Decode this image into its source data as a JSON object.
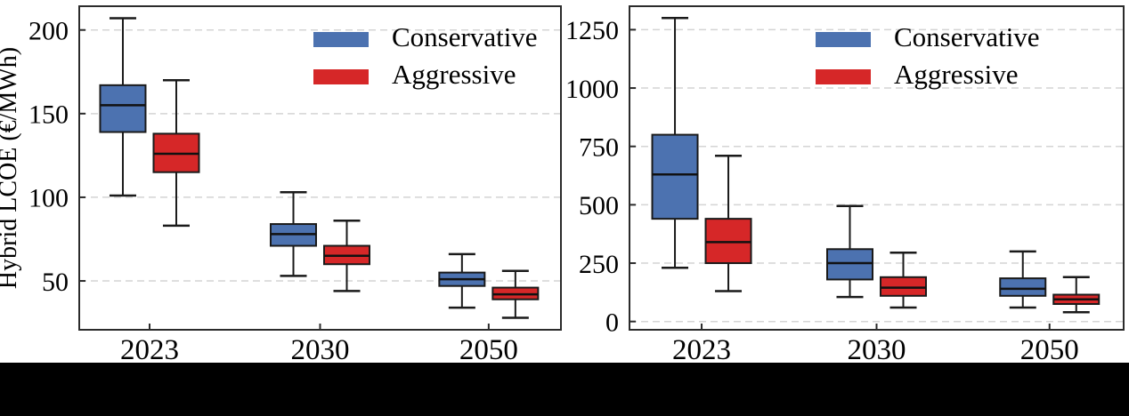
{
  "figure": {
    "description": "Two side-by-side box-and-whisker charts comparing Conservative vs Aggressive scenarios of Hybrid LCOE for years 2023, 2030, 2050",
    "bottom_bar_color": "#000000",
    "background_color": "#ffffff",
    "axis_color": "#2b2b2b",
    "grid_color": "#d4d4d4"
  },
  "chart_data": [
    {
      "type": "box",
      "title": "",
      "xlabel": "",
      "ylabel": "Hybrid LCOE (€/MWh)",
      "categories": [
        "2023",
        "2030",
        "2050"
      ],
      "yticks": [
        50,
        100,
        150,
        200
      ],
      "ylim": [
        20.8,
        214.2
      ],
      "grid": "dashed-horizontal",
      "legend_position": "upper right",
      "legend_entries": [
        "Conservative",
        "Aggressive"
      ],
      "series": [
        {
          "name": "Conservative",
          "color": "#4C72B0",
          "boxes": [
            {
              "category": "2023",
              "whislo": 101,
              "q1": 139,
              "med": 155,
              "q3": 167,
              "whishi": 207
            },
            {
              "category": "2030",
              "whislo": 53,
              "q1": 71,
              "med": 78,
              "q3": 84,
              "whishi": 103
            },
            {
              "category": "2050",
              "whislo": 34,
              "q1": 47,
              "med": 51,
              "q3": 55,
              "whishi": 66
            }
          ]
        },
        {
          "name": "Aggressive",
          "color": "#D62728",
          "boxes": [
            {
              "category": "2023",
              "whislo": 83,
              "q1": 115,
              "med": 126,
              "q3": 138,
              "whishi": 170
            },
            {
              "category": "2030",
              "whislo": 44,
              "q1": 60,
              "med": 65,
              "q3": 71,
              "whishi": 86
            },
            {
              "category": "2050",
              "whislo": 28,
              "q1": 39,
              "med": 42,
              "q3": 46,
              "whishi": 56
            }
          ]
        }
      ]
    },
    {
      "type": "box",
      "title": "",
      "xlabel": "",
      "ylabel": "",
      "categories": [
        "2023",
        "2030",
        "2050"
      ],
      "yticks": [
        0,
        250,
        500,
        750,
        1000,
        1250
      ],
      "ylim": [
        -35.4,
        1350.5
      ],
      "grid": "dashed-horizontal",
      "legend_position": "upper right",
      "legend_entries": [
        "Conservative",
        "Aggressive"
      ],
      "series": [
        {
          "name": "Conservative",
          "color": "#4C72B0",
          "boxes": [
            {
              "category": "2023",
              "whislo": 230,
              "q1": 440,
              "med": 630,
              "q3": 800,
              "whishi": 1300
            },
            {
              "category": "2030",
              "whislo": 105,
              "q1": 180,
              "med": 250,
              "q3": 310,
              "whishi": 495
            },
            {
              "category": "2050",
              "whislo": 60,
              "q1": 110,
              "med": 140,
              "q3": 185,
              "whishi": 300
            }
          ]
        },
        {
          "name": "Aggressive",
          "color": "#D62728",
          "boxes": [
            {
              "category": "2023",
              "whislo": 130,
              "q1": 250,
              "med": 340,
              "q3": 440,
              "whishi": 710
            },
            {
              "category": "2030",
              "whislo": 60,
              "q1": 110,
              "med": 145,
              "q3": 190,
              "whishi": 295
            },
            {
              "category": "2050",
              "whislo": 40,
              "q1": 75,
              "med": 95,
              "q3": 115,
              "whishi": 190
            }
          ]
        }
      ]
    }
  ]
}
